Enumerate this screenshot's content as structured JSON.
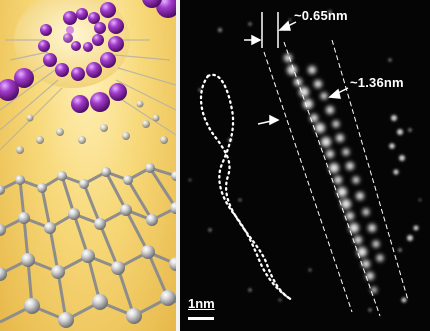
{
  "figure": {
    "left_panel": {
      "description_icon": "carbon-nanotube-with-helical-molecule"
    },
    "right_panel": {
      "labels": {
        "inner_width": "~0.65nm",
        "outer_width": "~1.36nm",
        "scalebar": "1nm"
      }
    }
  },
  "colors": {
    "nanotube_background": "#f7d878",
    "atom_gray": "#9b9b9b",
    "helix_purple": "#8e2aa3",
    "micrograph_background": "#050505"
  }
}
